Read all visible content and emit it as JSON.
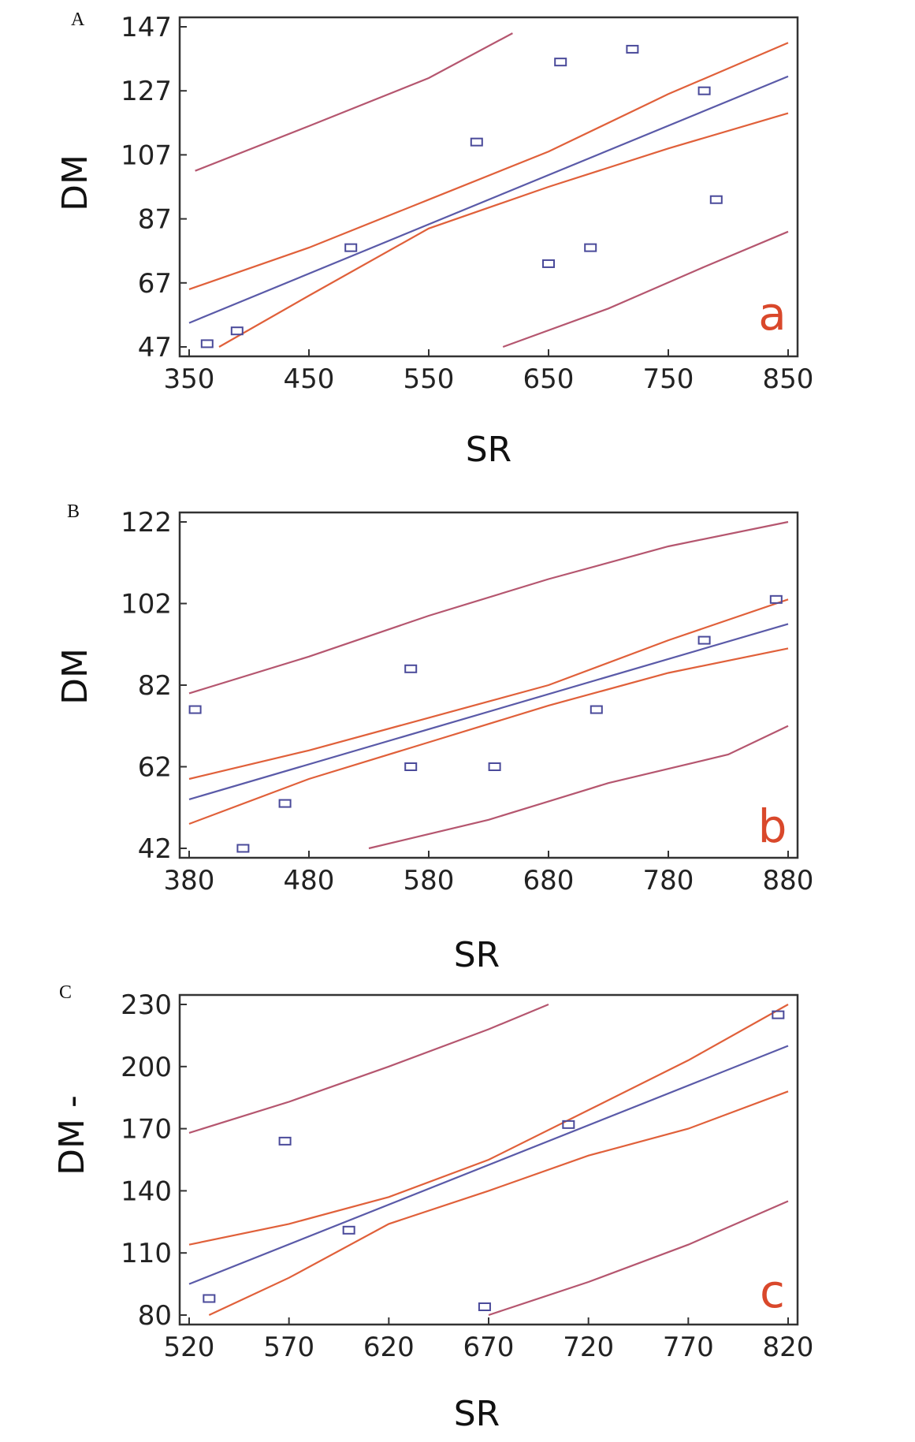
{
  "chart_data": [
    {
      "panel": "A",
      "type": "scatter",
      "corner_label": "a",
      "xlabel": "SR",
      "ylabel": "DM",
      "xlim": [
        350,
        850
      ],
      "ylim": [
        47,
        147
      ],
      "xticks": [
        350,
        450,
        550,
        650,
        750,
        850
      ],
      "yticks": [
        47,
        67,
        87,
        107,
        127,
        147
      ],
      "points": [
        [
          365,
          48
        ],
        [
          390,
          52
        ],
        [
          485,
          78
        ],
        [
          590,
          111
        ],
        [
          650,
          73
        ],
        [
          660,
          136
        ],
        [
          685,
          78
        ],
        [
          720,
          140
        ],
        [
          780,
          127
        ],
        [
          790,
          93
        ]
      ],
      "fit": [
        [
          350,
          54.5
        ],
        [
          850,
          131.5
        ]
      ],
      "confidence_upper": [
        [
          350,
          65
        ],
        [
          450,
          78
        ],
        [
          550,
          93
        ],
        [
          650,
          108
        ],
        [
          750,
          126
        ],
        [
          850,
          142
        ]
      ],
      "confidence_lower": [
        [
          375,
          47
        ],
        [
          450,
          63
        ],
        [
          550,
          84
        ],
        [
          650,
          97
        ],
        [
          750,
          109
        ],
        [
          850,
          120
        ]
      ],
      "prediction_upper": [
        [
          355,
          102
        ],
        [
          450,
          116
        ],
        [
          550,
          131
        ],
        [
          620,
          145
        ]
      ],
      "prediction_lower": [
        [
          612,
          47
        ],
        [
          700,
          59
        ],
        [
          780,
          72
        ],
        [
          850,
          83
        ]
      ]
    },
    {
      "panel": "B",
      "type": "scatter",
      "corner_label": "b",
      "xlabel": "SR",
      "ylabel": "DM",
      "xlim": [
        380,
        880
      ],
      "ylim": [
        42,
        122
      ],
      "xticks": [
        380,
        480,
        580,
        680,
        780,
        880
      ],
      "yticks": [
        42,
        62,
        82,
        102,
        122
      ],
      "points": [
        [
          385,
          76
        ],
        [
          425,
          42
        ],
        [
          460,
          53
        ],
        [
          565,
          86
        ],
        [
          565,
          62
        ],
        [
          635,
          62
        ],
        [
          720,
          76
        ],
        [
          810,
          93
        ],
        [
          870,
          103
        ]
      ],
      "fit": [
        [
          380,
          54
        ],
        [
          880,
          97
        ]
      ],
      "confidence_upper": [
        [
          380,
          59
        ],
        [
          480,
          66
        ],
        [
          580,
          74
        ],
        [
          680,
          82
        ],
        [
          780,
          93
        ],
        [
          880,
          103
        ]
      ],
      "confidence_lower": [
        [
          380,
          48
        ],
        [
          480,
          59
        ],
        [
          580,
          68
        ],
        [
          680,
          77
        ],
        [
          780,
          85
        ],
        [
          880,
          91
        ]
      ],
      "prediction_upper": [
        [
          380,
          80
        ],
        [
          480,
          89
        ],
        [
          580,
          99
        ],
        [
          680,
          108
        ],
        [
          780,
          116
        ],
        [
          880,
          122
        ]
      ],
      "prediction_lower": [
        [
          530,
          42
        ],
        [
          630,
          49
        ],
        [
          730,
          58
        ],
        [
          830,
          65
        ],
        [
          880,
          72
        ]
      ]
    },
    {
      "panel": "C",
      "type": "scatter",
      "corner_label": "c",
      "xlabel": "SR",
      "ylabel": "DM -",
      "xlim": [
        520,
        820
      ],
      "ylim": [
        80,
        230
      ],
      "xticks": [
        520,
        570,
        620,
        670,
        720,
        770,
        820
      ],
      "yticks": [
        80,
        110,
        140,
        170,
        200,
        230
      ],
      "points": [
        [
          530,
          88
        ],
        [
          568,
          164
        ],
        [
          600,
          121
        ],
        [
          668,
          84
        ],
        [
          710,
          172
        ],
        [
          815,
          225
        ]
      ],
      "fit": [
        [
          520,
          95
        ],
        [
          820,
          210
        ]
      ],
      "confidence_upper": [
        [
          520,
          114
        ],
        [
          570,
          124
        ],
        [
          620,
          137
        ],
        [
          670,
          155
        ],
        [
          720,
          179
        ],
        [
          770,
          203
        ],
        [
          820,
          230
        ]
      ],
      "confidence_lower": [
        [
          530,
          80
        ],
        [
          570,
          98
        ],
        [
          620,
          124
        ],
        [
          670,
          140
        ],
        [
          720,
          157
        ],
        [
          770,
          170
        ],
        [
          820,
          188
        ]
      ],
      "prediction_upper": [
        [
          520,
          168
        ],
        [
          570,
          183
        ],
        [
          620,
          200
        ],
        [
          670,
          218
        ],
        [
          700,
          230
        ]
      ],
      "prediction_lower": [
        [
          670,
          80
        ],
        [
          720,
          96
        ],
        [
          770,
          114
        ],
        [
          820,
          135
        ]
      ]
    }
  ]
}
